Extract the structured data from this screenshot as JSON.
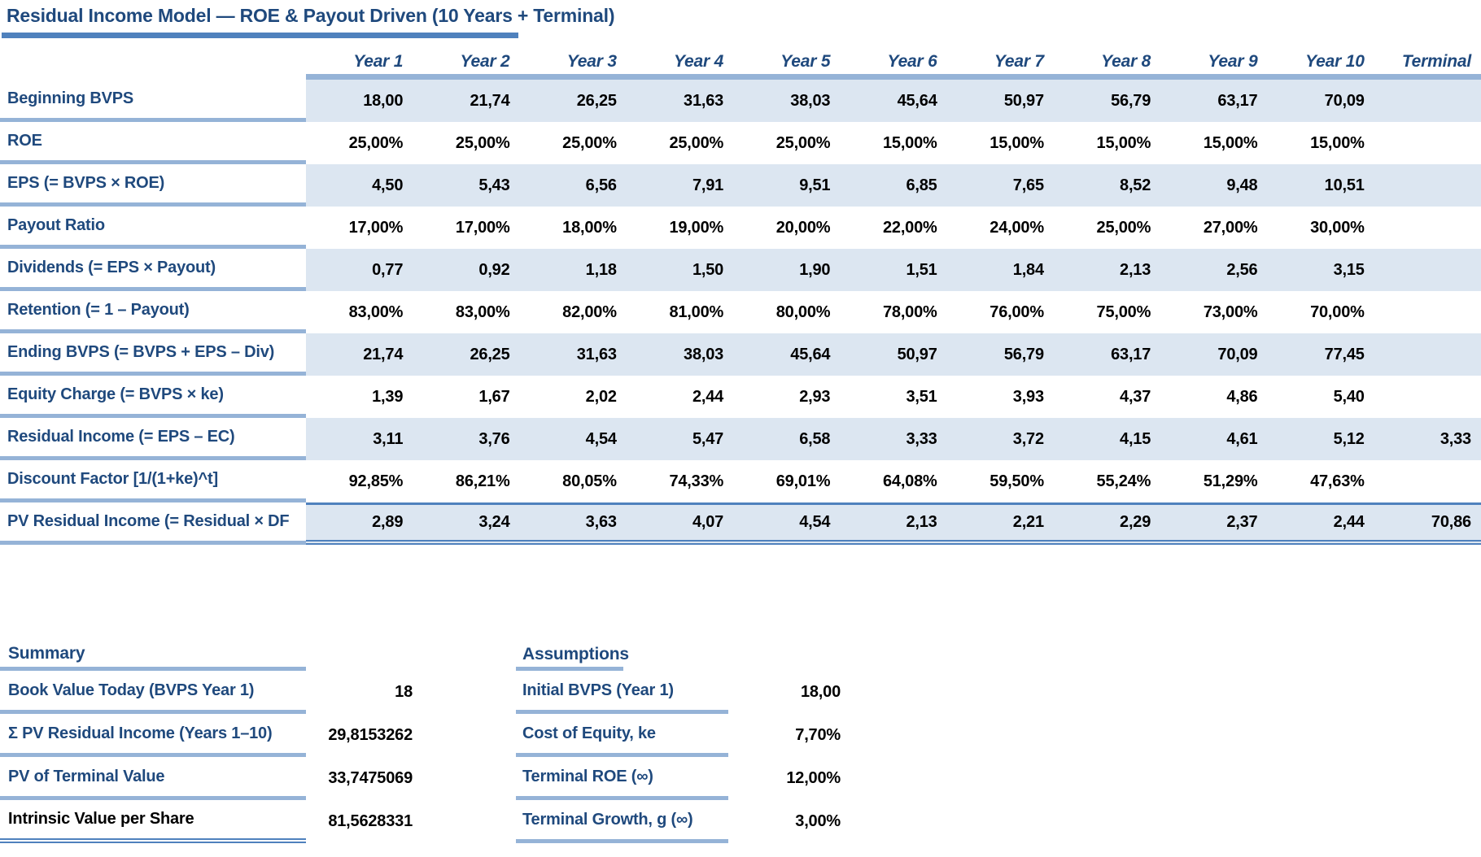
{
  "title": "Residual Income Model — ROE & Payout Driven (10 Years + Terminal)",
  "colors": {
    "label_text": "#1F497D",
    "value_text": "#000000",
    "rule_dark": "#4F81BD",
    "rule_light": "#95B3D7",
    "row_shade": "#DCE6F1"
  },
  "table": {
    "column_headers": [
      "Year 1",
      "Year 2",
      "Year 3",
      "Year 4",
      "Year 5",
      "Year 6",
      "Year 7",
      "Year 8",
      "Year 9",
      "Year 10",
      "Terminal"
    ],
    "rows": [
      {
        "label": "Beginning BVPS",
        "values": [
          "18,00",
          "21,74",
          "26,25",
          "31,63",
          "38,03",
          "45,64",
          "50,97",
          "56,79",
          "63,17",
          "70,09",
          ""
        ]
      },
      {
        "label": "ROE",
        "values": [
          "25,00%",
          "25,00%",
          "25,00%",
          "25,00%",
          "25,00%",
          "15,00%",
          "15,00%",
          "15,00%",
          "15,00%",
          "15,00%",
          ""
        ]
      },
      {
        "label": "EPS (= BVPS × ROE)",
        "values": [
          "4,50",
          "5,43",
          "6,56",
          "7,91",
          "9,51",
          "6,85",
          "7,65",
          "8,52",
          "9,48",
          "10,51",
          ""
        ]
      },
      {
        "label": "Payout Ratio",
        "values": [
          "17,00%",
          "17,00%",
          "18,00%",
          "19,00%",
          "20,00%",
          "22,00%",
          "24,00%",
          "25,00%",
          "27,00%",
          "30,00%",
          ""
        ]
      },
      {
        "label": "Dividends (= EPS × Payout)",
        "values": [
          "0,77",
          "0,92",
          "1,18",
          "1,50",
          "1,90",
          "1,51",
          "1,84",
          "2,13",
          "2,56",
          "3,15",
          ""
        ]
      },
      {
        "label": "Retention (= 1 – Payout)",
        "values": [
          "83,00%",
          "83,00%",
          "82,00%",
          "81,00%",
          "80,00%",
          "78,00%",
          "76,00%",
          "75,00%",
          "73,00%",
          "70,00%",
          ""
        ]
      },
      {
        "label": "Ending BVPS (= BVPS + EPS – Div)",
        "values": [
          "21,74",
          "26,25",
          "31,63",
          "38,03",
          "45,64",
          "50,97",
          "56,79",
          "63,17",
          "70,09",
          "77,45",
          ""
        ]
      },
      {
        "label": "Equity Charge (= BVPS × ke)",
        "values": [
          "1,39",
          "1,67",
          "2,02",
          "2,44",
          "2,93",
          "3,51",
          "3,93",
          "4,37",
          "4,86",
          "5,40",
          ""
        ]
      },
      {
        "label": "Residual Income (= EPS – EC)",
        "values": [
          "3,11",
          "3,76",
          "4,54",
          "5,47",
          "6,58",
          "3,33",
          "3,72",
          "4,15",
          "4,61",
          "5,12",
          "3,33"
        ]
      },
      {
        "label": "Discount Factor [1/(1+ke)^t]",
        "values": [
          "92,85%",
          "86,21%",
          "80,05%",
          "74,33%",
          "69,01%",
          "64,08%",
          "59,50%",
          "55,24%",
          "51,29%",
          "47,63%",
          ""
        ]
      },
      {
        "label": "PV Residual Income (= Residual × DF",
        "values": [
          "2,89",
          "3,24",
          "3,63",
          "4,07",
          "4,54",
          "2,13",
          "2,21",
          "2,29",
          "2,37",
          "2,44",
          "70,86"
        ]
      }
    ]
  },
  "summary": {
    "heading": "Summary",
    "items": [
      {
        "label": "Book Value Today (BVPS Year 1)",
        "value": "18",
        "final": false
      },
      {
        "label": "Σ PV Residual Income (Years 1–10)",
        "value": "29,8153262",
        "final": false
      },
      {
        "label": "PV of Terminal Value",
        "value": "33,7475069",
        "final": false
      },
      {
        "label": "Intrinsic Value per Share",
        "value": "81,5628331",
        "final": true
      }
    ]
  },
  "assumptions": {
    "heading": "Assumptions",
    "items": [
      {
        "label": "Initial BVPS (Year 1)",
        "value": "18,00"
      },
      {
        "label": "Cost of Equity, ke",
        "value": "7,70%"
      },
      {
        "label": "Terminal ROE (∞)",
        "value": "12,00%"
      },
      {
        "label": "Terminal Growth, g (∞)",
        "value": "3,00%"
      }
    ]
  }
}
